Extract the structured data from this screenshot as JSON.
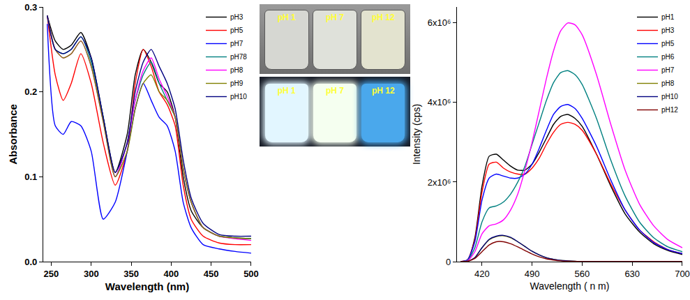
{
  "chart_data": [
    {
      "type": "line",
      "x_label": "Wavelength (nm)",
      "y_label": "Absorbance",
      "x": [
        245,
        255,
        265,
        275,
        287,
        300,
        315,
        330,
        345,
        355,
        365,
        375,
        385,
        395,
        405,
        415,
        425,
        440,
        460,
        480,
        500
      ],
      "xlim": [
        240,
        500
      ],
      "xticks": [
        250,
        300,
        350,
        400,
        450,
        500
      ],
      "ylim": [
        0,
        0.3
      ],
      "yticks": [
        {
          "value": 0,
          "label": "0.0"
        },
        0.1,
        0.2,
        0.3
      ],
      "grid": false,
      "legend": "upper right",
      "series": [
        {
          "name": "pH3",
          "color": "#000000",
          "values": [
            0.29,
            0.26,
            0.25,
            0.255,
            0.27,
            0.24,
            0.17,
            0.105,
            0.15,
            0.22,
            0.25,
            0.235,
            0.21,
            0.2,
            0.17,
            0.1,
            0.06,
            0.04,
            0.03,
            0.028,
            0.027
          ]
        },
        {
          "name": "pH5",
          "color": "#ff0000",
          "values": [
            0.29,
            0.22,
            0.19,
            0.21,
            0.245,
            0.21,
            0.14,
            0.09,
            0.13,
            0.21,
            0.25,
            0.23,
            0.2,
            0.185,
            0.16,
            0.09,
            0.05,
            0.03,
            0.022,
            0.02,
            0.02
          ]
        },
        {
          "name": "pH7",
          "color": "#0000ff",
          "values": [
            0.28,
            0.16,
            0.15,
            0.165,
            0.16,
            0.13,
            0.05,
            0.07,
            0.13,
            0.18,
            0.21,
            0.19,
            0.17,
            0.16,
            0.13,
            0.07,
            0.04,
            0.02,
            0.015,
            0.012,
            0.01
          ]
        },
        {
          "name": "pH78",
          "color": "#008080",
          "values": [
            0.29,
            0.25,
            0.245,
            0.25,
            0.265,
            0.235,
            0.17,
            0.1,
            0.14,
            0.19,
            0.22,
            0.235,
            0.21,
            0.19,
            0.17,
            0.11,
            0.07,
            0.04,
            0.03,
            0.028,
            0.027
          ]
        },
        {
          "name": "pH8",
          "color": "#ff00ff",
          "values": [
            0.29,
            0.25,
            0.24,
            0.245,
            0.26,
            0.23,
            0.165,
            0.1,
            0.14,
            0.19,
            0.225,
            0.24,
            0.215,
            0.195,
            0.17,
            0.11,
            0.07,
            0.04,
            0.03,
            0.027,
            0.025
          ]
        },
        {
          "name": "pH9",
          "color": "#808000",
          "values": [
            0.29,
            0.25,
            0.24,
            0.245,
            0.26,
            0.23,
            0.165,
            0.1,
            0.13,
            0.18,
            0.21,
            0.22,
            0.2,
            0.19,
            0.17,
            0.11,
            0.07,
            0.04,
            0.03,
            0.028,
            0.027
          ]
        },
        {
          "name": "pH10",
          "color": "#000080",
          "values": [
            0.29,
            0.25,
            0.245,
            0.25,
            0.265,
            0.24,
            0.17,
            0.105,
            0.14,
            0.2,
            0.235,
            0.25,
            0.23,
            0.21,
            0.18,
            0.12,
            0.075,
            0.045,
            0.032,
            0.03,
            0.03
          ]
        }
      ]
    },
    {
      "type": "line",
      "x_label": "Wavelength ( n m)",
      "y_label": "Intensity (cps)",
      "x": [
        390,
        400,
        410,
        420,
        430,
        440,
        450,
        460,
        470,
        480,
        490,
        500,
        510,
        520,
        530,
        540,
        550,
        560,
        580,
        600,
        620,
        640,
        660,
        680,
        700
      ],
      "xlim": [
        385,
        700
      ],
      "xticks": [
        420,
        490,
        560,
        630,
        700
      ],
      "ylim": [
        0,
        6400000
      ],
      "yticks": [
        0,
        {
          "value": 2000000,
          "label": "2x10⁶"
        },
        {
          "value": 4000000,
          "label": "4x10⁶"
        },
        {
          "value": 6000000,
          "label": "6x10⁶"
        }
      ],
      "grid": false,
      "legend": "upper right",
      "series": [
        {
          "name": "pH1",
          "color": "#000000",
          "values": [
            0,
            50000,
            600000,
            1900000,
            2650000,
            2700000,
            2550000,
            2400000,
            2300000,
            2300000,
            2450000,
            2750000,
            3100000,
            3450000,
            3650000,
            3700000,
            3600000,
            3400000,
            2700000,
            1900000,
            1200000,
            750000,
            450000,
            280000,
            180000
          ]
        },
        {
          "name": "pH3",
          "color": "#ff0000",
          "values": [
            0,
            50000,
            550000,
            1750000,
            2450000,
            2500000,
            2350000,
            2250000,
            2200000,
            2200000,
            2350000,
            2600000,
            2950000,
            3250000,
            3450000,
            3500000,
            3450000,
            3300000,
            2700000,
            1950000,
            1300000,
            800000,
            500000,
            300000,
            200000
          ]
        },
        {
          "name": "pH5",
          "color": "#0000ff",
          "values": [
            0,
            50000,
            500000,
            1550000,
            2100000,
            2200000,
            2150000,
            2100000,
            2100000,
            2200000,
            2450000,
            2850000,
            3300000,
            3700000,
            3900000,
            3950000,
            3850000,
            3600000,
            2900000,
            2050000,
            1300000,
            800000,
            480000,
            300000,
            200000
          ]
        },
        {
          "name": "pH6",
          "color": "#008080",
          "values": [
            0,
            30000,
            350000,
            1000000,
            1350000,
            1400000,
            1500000,
            1700000,
            2000000,
            2400000,
            2950000,
            3500000,
            4050000,
            4500000,
            4750000,
            4800000,
            4700000,
            4450000,
            3600000,
            2550000,
            1650000,
            1000000,
            600000,
            370000,
            250000
          ]
        },
        {
          "name": "pH7",
          "color": "#ff00ff",
          "values": [
            0,
            20000,
            250000,
            700000,
            900000,
            950000,
            1050000,
            1300000,
            1700000,
            2300000,
            3000000,
            3800000,
            4600000,
            5300000,
            5800000,
            6000000,
            5950000,
            5700000,
            4700000,
            3450000,
            2300000,
            1450000,
            900000,
            550000,
            350000
          ]
        },
        {
          "name": "pH8",
          "color": "#808000",
          "values": [
            0,
            10000,
            100000,
            350000,
            550000,
            630000,
            650000,
            600000,
            500000,
            380000,
            260000,
            170000,
            100000,
            60000,
            30000,
            20000,
            10000,
            0,
            0,
            0,
            0,
            0,
            0,
            0,
            0
          ]
        },
        {
          "name": "pH10",
          "color": "#000080",
          "values": [
            0,
            10000,
            100000,
            350000,
            560000,
            640000,
            660000,
            610000,
            500000,
            380000,
            260000,
            170000,
            100000,
            60000,
            30000,
            20000,
            10000,
            0,
            0,
            0,
            0,
            0,
            0,
            0,
            0
          ]
        },
        {
          "name": "pH12",
          "color": "#800000",
          "values": [
            0,
            10000,
            80000,
            250000,
            420000,
            500000,
            500000,
            450000,
            370000,
            280000,
            190000,
            120000,
            70000,
            40000,
            20000,
            10000,
            5000,
            0,
            0,
            0,
            0,
            0,
            0,
            0,
            0
          ]
        }
      ]
    }
  ],
  "inset": {
    "rows": [
      {
        "labels": [
          "pH 1",
          "pH 7",
          "pH 12"
        ],
        "colors": [
          "#d6d7d2",
          "#dfe1da",
          "#e3e3cf"
        ]
      },
      {
        "labels": [
          "pH 1",
          "pH 7",
          "pH 12"
        ],
        "colors": [
          "#e2f6ff",
          "#f5fff0",
          "#4aa8ec"
        ]
      }
    ]
  }
}
